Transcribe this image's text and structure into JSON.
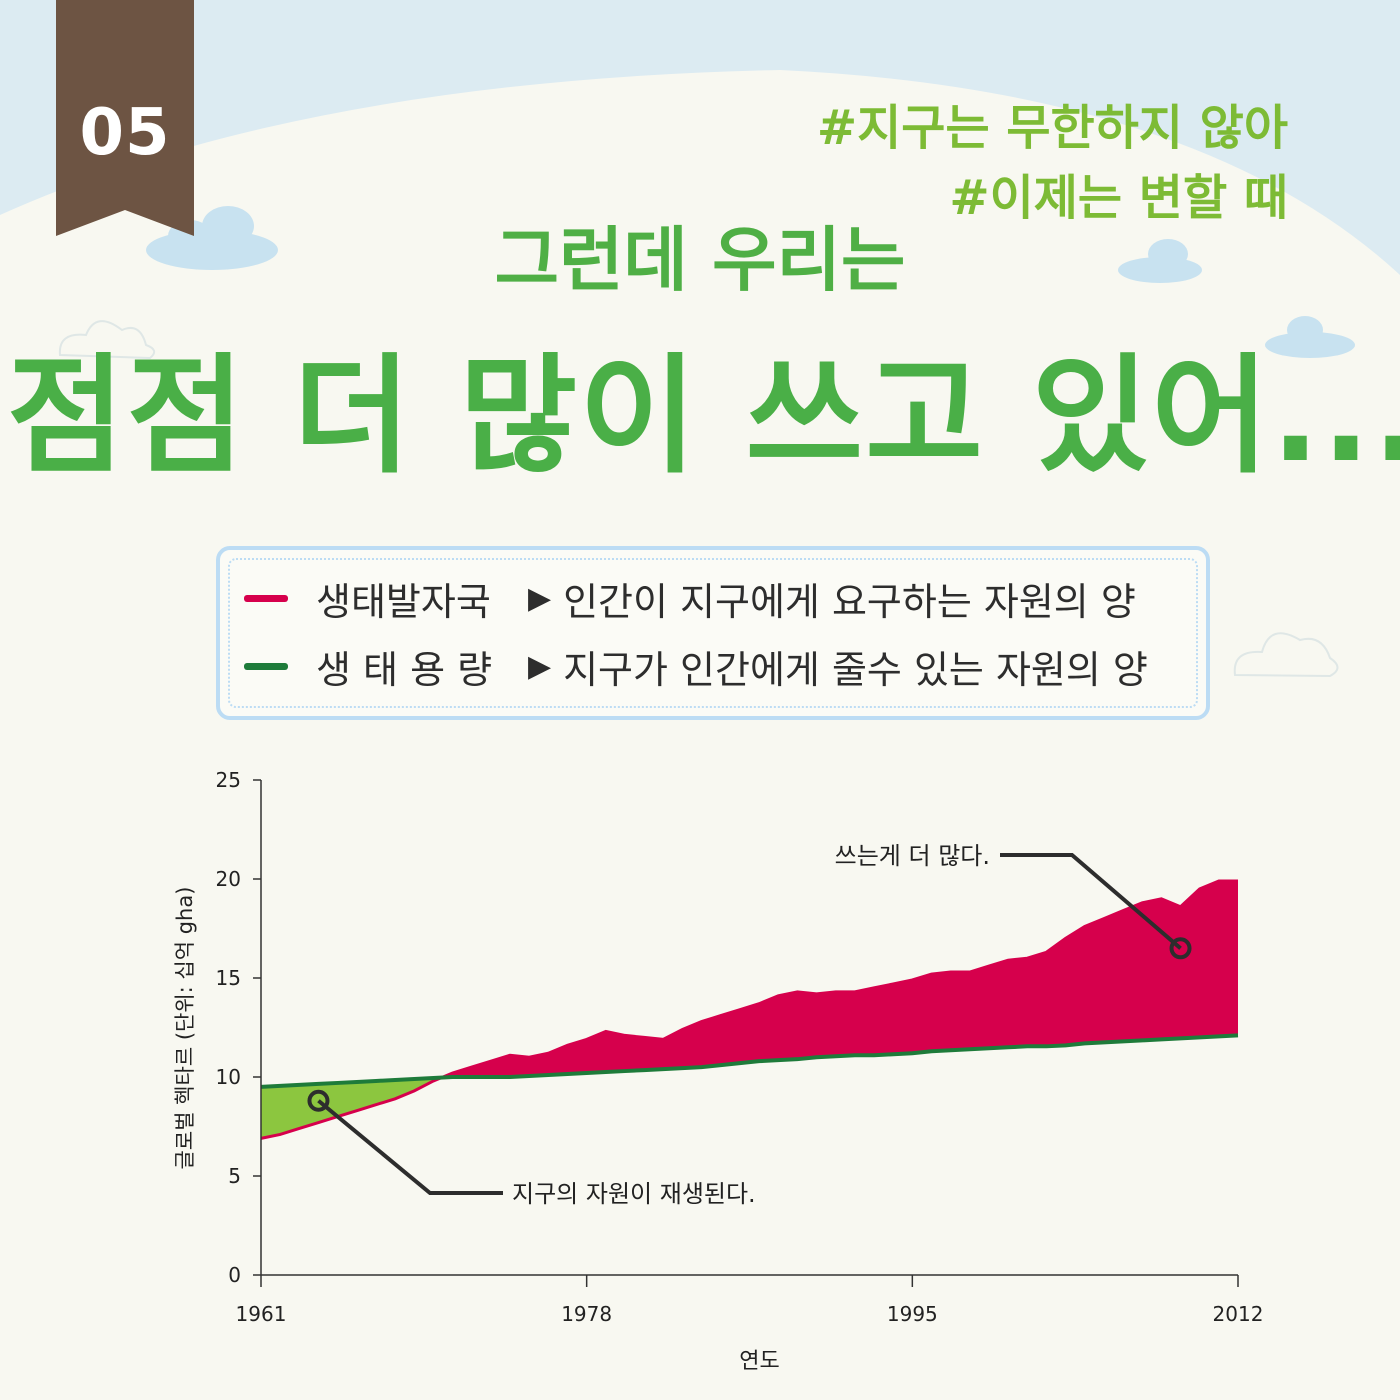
{
  "badge": {
    "number": "05"
  },
  "hashtags": [
    "#지구는 무한하지 않아",
    "#이제는 변할 때"
  ],
  "subtitle": "그런데 우리는",
  "title": "점점 더 많이 쓰고 있어...",
  "colors": {
    "footprint": "#d6004c",
    "biocapacity": "#1e7b3a",
    "deficit_fill": "#d6004c",
    "reserve_fill": "#8cc63f",
    "title_green": "#4aaf47",
    "tag_green": "#7dbb35",
    "badge": "#6d5443"
  },
  "legend": [
    {
      "name": "생태발자국",
      "desc": "인간이 지구에게 요구하는 자원의 양",
      "color": "#d6004c"
    },
    {
      "name": "생 태  용 량",
      "desc": "지구가 인간에게 줄수 있는 자원의 양",
      "color": "#1e7b3a"
    }
  ],
  "chart_data": {
    "type": "area",
    "ylabel": "글로벌 헥타르 (단위: 십억 gha)",
    "xlabel": "연도",
    "xlim": [
      1961,
      2012
    ],
    "ylim": [
      0,
      25
    ],
    "x_ticks": [
      1961,
      1978,
      1995,
      2012
    ],
    "y_ticks": [
      0,
      5,
      10,
      15,
      20,
      25
    ],
    "x": [
      1961,
      1962,
      1963,
      1964,
      1965,
      1966,
      1967,
      1968,
      1969,
      1970,
      1971,
      1972,
      1973,
      1974,
      1975,
      1976,
      1977,
      1978,
      1979,
      1980,
      1981,
      1982,
      1983,
      1984,
      1985,
      1986,
      1987,
      1988,
      1989,
      1990,
      1991,
      1992,
      1993,
      1994,
      1995,
      1996,
      1997,
      1998,
      1999,
      2000,
      2001,
      2002,
      2003,
      2004,
      2005,
      2006,
      2007,
      2008,
      2009,
      2010,
      2011,
      2012
    ],
    "series": [
      {
        "name": "생태발자국",
        "values": [
          6.9,
          7.1,
          7.4,
          7.7,
          8.0,
          8.3,
          8.6,
          8.9,
          9.3,
          9.8,
          10.2,
          10.5,
          10.8,
          11.1,
          11.0,
          11.2,
          11.6,
          11.9,
          12.3,
          12.1,
          12.0,
          11.9,
          12.4,
          12.8,
          13.1,
          13.4,
          13.7,
          14.1,
          14.3,
          14.2,
          14.3,
          14.3,
          14.5,
          14.7,
          14.9,
          15.2,
          15.3,
          15.3,
          15.6,
          15.9,
          16.0,
          16.3,
          17.0,
          17.6,
          18.0,
          18.4,
          18.8,
          19.0,
          18.6,
          19.5,
          19.9,
          19.9
        ]
      },
      {
        "name": "생태용량",
        "values": [
          9.5,
          9.55,
          9.6,
          9.65,
          9.7,
          9.75,
          9.8,
          9.85,
          9.9,
          9.95,
          10.0,
          10.0,
          10.0,
          10.0,
          10.05,
          10.1,
          10.15,
          10.2,
          10.25,
          10.3,
          10.35,
          10.4,
          10.45,
          10.5,
          10.6,
          10.7,
          10.8,
          10.85,
          10.9,
          11.0,
          11.05,
          11.1,
          11.1,
          11.15,
          11.2,
          11.3,
          11.35,
          11.4,
          11.45,
          11.5,
          11.55,
          11.55,
          11.6,
          11.7,
          11.75,
          11.8,
          11.85,
          11.9,
          11.95,
          12.0,
          12.05,
          12.1
        ]
      }
    ],
    "annotations": [
      {
        "text": "쓰는게 더 많다.",
        "x": 2009,
        "y": 16.5
      },
      {
        "text": "지구의 자원이 재생된다.",
        "x": 1964,
        "y": 8.8
      }
    ]
  }
}
